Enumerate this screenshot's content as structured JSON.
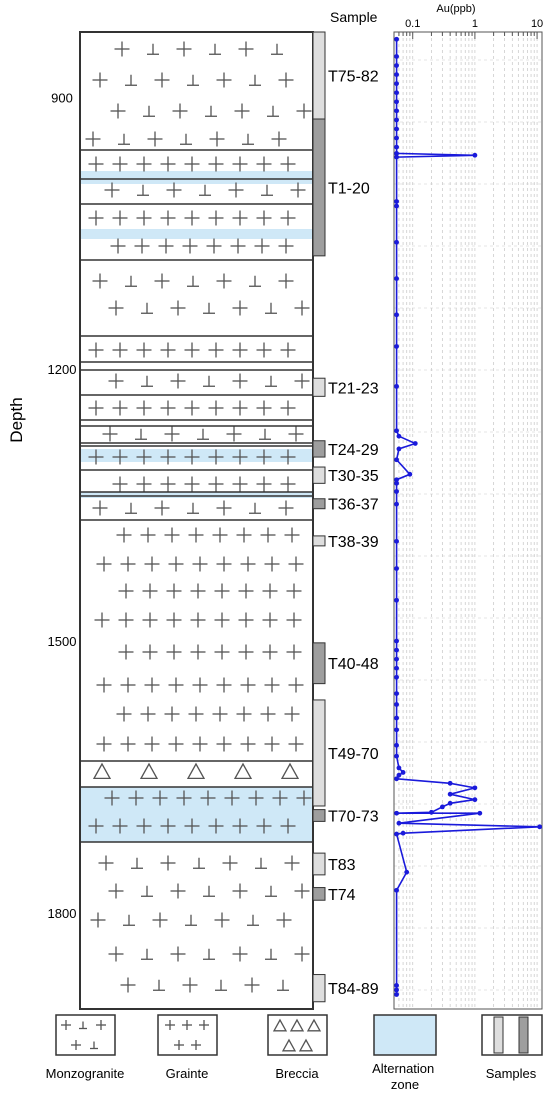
{
  "chart_data": {
    "type": "line",
    "left_axis": {
      "label": "Depth",
      "ticks": [
        900,
        1200,
        1500,
        1800
      ],
      "range": [
        828,
        1906
      ]
    },
    "sample_header": "Sample",
    "au_axis": {
      "label": "Au(ppb)",
      "scale": "log",
      "ticks": [
        "0.1",
        "1",
        "10"
      ],
      "range": [
        0.05,
        12
      ]
    },
    "samples": [
      {
        "label": "T75-82",
        "top": 828,
        "bottom": 924
      },
      {
        "label": "T1-20",
        "top": 924,
        "bottom": 1075
      },
      {
        "label": "T21-23",
        "top": 1210,
        "bottom": 1230
      },
      {
        "label": "T24-29",
        "top": 1279,
        "bottom": 1297
      },
      {
        "label": "T30-35",
        "top": 1308,
        "bottom": 1326
      },
      {
        "label": "T36-37",
        "top": 1343,
        "bottom": 1354
      },
      {
        "label": "T38-39",
        "top": 1384,
        "bottom": 1395
      },
      {
        "label": "T40-48",
        "top": 1502,
        "bottom": 1547
      },
      {
        "label": "T49-70",
        "top": 1565,
        "bottom": 1682
      },
      {
        "label": "T70-73",
        "top": 1686,
        "bottom": 1699
      },
      {
        "label": "T83",
        "top": 1734,
        "bottom": 1758
      },
      {
        "label": "T74",
        "top": 1772,
        "bottom": 1786
      },
      {
        "label": "T84-89",
        "top": 1868,
        "bottom": 1898
      }
    ],
    "au_series": [
      {
        "depth": 836,
        "au": 0.055
      },
      {
        "depth": 855,
        "au": 0.055
      },
      {
        "depth": 865,
        "au": 0.055
      },
      {
        "depth": 875,
        "au": 0.055
      },
      {
        "depth": 885,
        "au": 0.055
      },
      {
        "depth": 895,
        "au": 0.055
      },
      {
        "depth": 905,
        "au": 0.055
      },
      {
        "depth": 915,
        "au": 0.055
      },
      {
        "depth": 925,
        "au": 0.055
      },
      {
        "depth": 935,
        "au": 0.055
      },
      {
        "depth": 945,
        "au": 0.055
      },
      {
        "depth": 955,
        "au": 0.055
      },
      {
        "depth": 962,
        "au": 0.055
      },
      {
        "depth": 964,
        "au": 1.0
      },
      {
        "depth": 966,
        "au": 0.055
      },
      {
        "depth": 1015,
        "au": 0.055
      },
      {
        "depth": 1020,
        "au": 0.055
      },
      {
        "depth": 1060,
        "au": 0.055
      },
      {
        "depth": 1100,
        "au": 0.055
      },
      {
        "depth": 1140,
        "au": 0.055
      },
      {
        "depth": 1175,
        "au": 0.055
      },
      {
        "depth": 1219,
        "au": 0.055
      },
      {
        "depth": 1268,
        "au": 0.055
      },
      {
        "depth": 1274,
        "au": 0.06
      },
      {
        "depth": 1282,
        "au": 0.11
      },
      {
        "depth": 1288,
        "au": 0.06
      },
      {
        "depth": 1300,
        "au": 0.055
      },
      {
        "depth": 1316,
        "au": 0.09
      },
      {
        "depth": 1322,
        "au": 0.055
      },
      {
        "depth": 1326,
        "au": 0.055
      },
      {
        "depth": 1335,
        "au": 0.055
      },
      {
        "depth": 1349,
        "au": 0.055
      },
      {
        "depth": 1390,
        "au": 0.055
      },
      {
        "depth": 1420,
        "au": 0.055
      },
      {
        "depth": 1455,
        "au": 0.055
      },
      {
        "depth": 1500,
        "au": 0.055
      },
      {
        "depth": 1510,
        "au": 0.055
      },
      {
        "depth": 1520,
        "au": 0.055
      },
      {
        "depth": 1530,
        "au": 0.055
      },
      {
        "depth": 1540,
        "au": 0.055
      },
      {
        "depth": 1558,
        "au": 0.055
      },
      {
        "depth": 1570,
        "au": 0.055
      },
      {
        "depth": 1585,
        "au": 0.055
      },
      {
        "depth": 1598,
        "au": 0.055
      },
      {
        "depth": 1615,
        "au": 0.055
      },
      {
        "depth": 1627,
        "au": 0.055
      },
      {
        "depth": 1640,
        "au": 0.06
      },
      {
        "depth": 1645,
        "au": 0.07
      },
      {
        "depth": 1648,
        "au": 0.06
      },
      {
        "depth": 1652,
        "au": 0.055
      },
      {
        "depth": 1657,
        "au": 0.4
      },
      {
        "depth": 1662,
        "au": 1.0
      },
      {
        "depth": 1669,
        "au": 0.4
      },
      {
        "depth": 1675,
        "au": 1.0
      },
      {
        "depth": 1679,
        "au": 0.4
      },
      {
        "depth": 1683,
        "au": 0.3
      },
      {
        "depth": 1689,
        "au": 0.2
      },
      {
        "depth": 1690,
        "au": 0.055
      },
      {
        "depth": 1690,
        "au": 1.2
      },
      {
        "depth": 1701,
        "au": 0.06
      },
      {
        "depth": 1705,
        "au": 11
      },
      {
        "depth": 1712,
        "au": 0.07
      },
      {
        "depth": 1713,
        "au": 0.055
      },
      {
        "depth": 1755,
        "au": 0.08
      },
      {
        "depth": 1775,
        "au": 0.055
      },
      {
        "depth": 1880,
        "au": 0.055
      },
      {
        "depth": 1885,
        "au": 0.055
      },
      {
        "depth": 1890,
        "au": 0.055
      }
    ],
    "legend": [
      {
        "name": "Monzogranite",
        "key": "monzogranite"
      },
      {
        "name": "Grainte",
        "key": "granite"
      },
      {
        "name": "Breccia",
        "key": "breccia"
      },
      {
        "name": "Alternation zone",
        "key": "alteration"
      },
      {
        "name": "Samples",
        "key": "samples"
      }
    ],
    "colors": {
      "series": "#1a1adb",
      "alteration": "#cfe8f7",
      "sample_light": "#dedede",
      "sample_dark": "#9e9e9e",
      "frame": "#333333",
      "symbol": "#555555",
      "grid": "#cccccc"
    }
  }
}
